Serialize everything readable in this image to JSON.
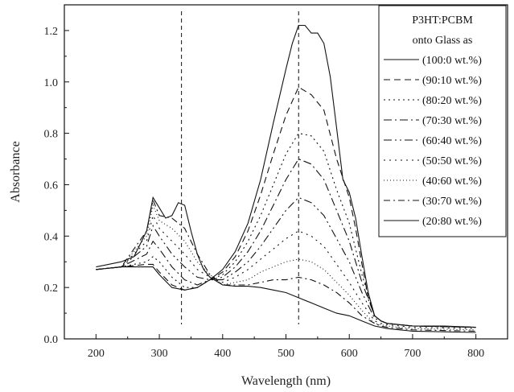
{
  "chart_data": {
    "type": "line",
    "xlabel": "Wavelength (nm)",
    "ylabel": "Absorbance",
    "xlim": [
      150,
      850
    ],
    "ylim": [
      0.0,
      1.3
    ],
    "xticks": [
      200,
      300,
      400,
      500,
      600,
      700,
      800
    ],
    "yticks": [
      0.0,
      0.2,
      0.4,
      0.6,
      0.8,
      1.0,
      1.2
    ],
    "grid": false,
    "legend_position": "top-right",
    "legend_title": [
      "P3HT:PCBM",
      "onto Glass as"
    ],
    "reference_lines_x": [
      335,
      520
    ],
    "series": [
      {
        "name": "(100:0 wt.%)",
        "dash": "",
        "x": [
          200,
          240,
          280,
          290,
          300,
          320,
          340,
          360,
          380,
          400,
          420,
          440,
          460,
          480,
          500,
          510,
          520,
          530,
          540,
          550,
          560,
          570,
          580,
          590,
          600,
          610,
          620,
          630,
          640,
          650,
          660,
          680,
          700,
          750,
          800
        ],
        "y": [
          0.27,
          0.28,
          0.28,
          0.28,
          0.25,
          0.2,
          0.19,
          0.2,
          0.23,
          0.27,
          0.34,
          0.45,
          0.62,
          0.84,
          1.05,
          1.15,
          1.22,
          1.22,
          1.19,
          1.19,
          1.15,
          1.02,
          0.82,
          0.62,
          0.57,
          0.47,
          0.32,
          0.18,
          0.09,
          0.07,
          0.06,
          0.055,
          0.05,
          0.05,
          0.045
        ]
      },
      {
        "name": "(90:10 wt.%)",
        "dash": "8,5",
        "x": [
          200,
          240,
          280,
          290,
          300,
          320,
          340,
          360,
          380,
          400,
          420,
          440,
          460,
          480,
          500,
          520,
          540,
          560,
          580,
          600,
          610,
          620,
          630,
          640,
          650,
          660,
          680,
          700,
          800
        ],
        "y": [
          0.27,
          0.28,
          0.29,
          0.29,
          0.26,
          0.21,
          0.19,
          0.2,
          0.23,
          0.26,
          0.32,
          0.42,
          0.56,
          0.72,
          0.87,
          0.98,
          0.95,
          0.89,
          0.7,
          0.55,
          0.43,
          0.29,
          0.16,
          0.09,
          0.07,
          0.06,
          0.055,
          0.05,
          0.045
        ]
      },
      {
        "name": "(80:20 wt.%)",
        "dash": "2,4",
        "x": [
          200,
          240,
          280,
          290,
          300,
          320,
          340,
          360,
          380,
          400,
          420,
          440,
          460,
          480,
          500,
          520,
          540,
          560,
          580,
          600,
          620,
          640,
          650,
          660,
          680,
          700,
          800
        ],
        "y": [
          0.27,
          0.28,
          0.3,
          0.32,
          0.3,
          0.24,
          0.2,
          0.2,
          0.23,
          0.25,
          0.3,
          0.38,
          0.48,
          0.6,
          0.72,
          0.8,
          0.79,
          0.73,
          0.58,
          0.45,
          0.25,
          0.09,
          0.07,
          0.06,
          0.055,
          0.05,
          0.045
        ]
      },
      {
        "name": "(70:30 wt.%)",
        "dash": "10,4,2,4",
        "x": [
          200,
          240,
          280,
          290,
          300,
          320,
          340,
          360,
          380,
          400,
          420,
          440,
          460,
          480,
          500,
          520,
          540,
          560,
          580,
          600,
          620,
          640,
          650,
          660,
          680,
          700,
          800
        ],
        "y": [
          0.27,
          0.28,
          0.33,
          0.38,
          0.35,
          0.28,
          0.23,
          0.21,
          0.23,
          0.24,
          0.28,
          0.34,
          0.42,
          0.52,
          0.62,
          0.7,
          0.68,
          0.62,
          0.5,
          0.38,
          0.22,
          0.09,
          0.07,
          0.06,
          0.055,
          0.05,
          0.045
        ]
      },
      {
        "name": "(60:40 wt.%)",
        "dash": "10,4,2,4,2,4",
        "x": [
          200,
          240,
          280,
          290,
          300,
          320,
          340,
          360,
          380,
          400,
          420,
          440,
          460,
          480,
          500,
          520,
          540,
          560,
          580,
          600,
          620,
          640,
          650,
          660,
          680,
          700,
          800
        ],
        "y": [
          0.27,
          0.28,
          0.36,
          0.44,
          0.4,
          0.33,
          0.28,
          0.24,
          0.23,
          0.23,
          0.26,
          0.3,
          0.36,
          0.43,
          0.5,
          0.55,
          0.53,
          0.48,
          0.39,
          0.3,
          0.18,
          0.08,
          0.07,
          0.06,
          0.055,
          0.05,
          0.045
        ]
      },
      {
        "name": "(50:50 wt.%)",
        "dash": "2,5",
        "x": [
          200,
          240,
          280,
          290,
          300,
          320,
          340,
          360,
          380,
          400,
          420,
          440,
          460,
          480,
          500,
          520,
          540,
          560,
          580,
          600,
          620,
          640,
          650,
          660,
          680,
          700,
          800
        ],
        "y": [
          0.27,
          0.28,
          0.38,
          0.48,
          0.43,
          0.38,
          0.33,
          0.27,
          0.24,
          0.22,
          0.24,
          0.27,
          0.31,
          0.35,
          0.39,
          0.42,
          0.4,
          0.36,
          0.29,
          0.22,
          0.14,
          0.07,
          0.06,
          0.055,
          0.05,
          0.045,
          0.04
        ]
      },
      {
        "name": "(40:60 wt.%)",
        "dash": "1,3",
        "x": [
          200,
          240,
          280,
          290,
          300,
          320,
          340,
          360,
          380,
          400,
          420,
          440,
          460,
          480,
          500,
          520,
          540,
          560,
          580,
          600,
          620,
          640,
          650,
          660,
          680,
          700,
          800
        ],
        "y": [
          0.27,
          0.28,
          0.4,
          0.52,
          0.46,
          0.43,
          0.38,
          0.3,
          0.25,
          0.21,
          0.22,
          0.23,
          0.26,
          0.28,
          0.3,
          0.31,
          0.3,
          0.27,
          0.22,
          0.17,
          0.11,
          0.06,
          0.055,
          0.05,
          0.045,
          0.04,
          0.035
        ]
      },
      {
        "name": "(30:70 wt.%)",
        "dash": "8,4,2,4",
        "x": [
          200,
          240,
          280,
          290,
          300,
          320,
          340,
          360,
          380,
          400,
          420,
          440,
          460,
          480,
          500,
          520,
          540,
          560,
          580,
          600,
          620,
          640,
          650,
          660,
          680,
          700,
          800
        ],
        "y": [
          0.27,
          0.28,
          0.42,
          0.54,
          0.48,
          0.47,
          0.43,
          0.33,
          0.25,
          0.21,
          0.21,
          0.21,
          0.22,
          0.23,
          0.23,
          0.24,
          0.23,
          0.21,
          0.18,
          0.14,
          0.09,
          0.06,
          0.05,
          0.045,
          0.04,
          0.035,
          0.03
        ]
      },
      {
        "name": "(20:80 wt.%)",
        "dash": "",
        "x": [
          200,
          240,
          260,
          270,
          280,
          290,
          300,
          310,
          320,
          330,
          340,
          350,
          360,
          370,
          380,
          400,
          420,
          440,
          460,
          480,
          500,
          520,
          540,
          560,
          580,
          600,
          620,
          640,
          650,
          660,
          680,
          700,
          800
        ],
        "y": [
          0.28,
          0.3,
          0.32,
          0.37,
          0.42,
          0.55,
          0.51,
          0.47,
          0.48,
          0.53,
          0.52,
          0.42,
          0.33,
          0.27,
          0.24,
          0.21,
          0.205,
          0.205,
          0.2,
          0.19,
          0.18,
          0.16,
          0.14,
          0.12,
          0.1,
          0.09,
          0.07,
          0.05,
          0.045,
          0.04,
          0.035,
          0.03,
          0.025
        ]
      }
    ]
  }
}
